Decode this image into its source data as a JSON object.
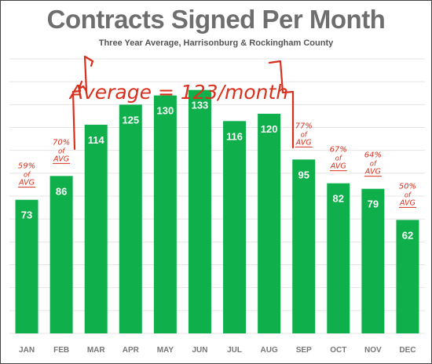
{
  "chart_data": {
    "type": "bar",
    "title": "Contracts Signed Per Month",
    "subtitle": "Three Year Average, Harrisonburg & Rockingham County",
    "categories": [
      "JAN",
      "FEB",
      "MAR",
      "APR",
      "MAY",
      "JUN",
      "JUL",
      "AUG",
      "SEP",
      "OCT",
      "NOV",
      "DEC"
    ],
    "values": [
      73,
      86,
      114,
      125,
      130,
      133,
      116,
      120,
      95,
      82,
      79,
      62
    ],
    "ylim": [
      0,
      150
    ],
    "grid": true,
    "bar_color": "#0fb04b",
    "annotation_color": "#d9301e",
    "average_annotation": "Average = 123/month",
    "pct_annotations": [
      {
        "month": "JAN",
        "pct": "59%",
        "of": "of",
        "avg": "AVG"
      },
      {
        "month": "FEB",
        "pct": "70%",
        "of": "of",
        "avg": "AVG"
      },
      {
        "month": "SEP",
        "pct": "77%",
        "of": "of",
        "avg": "AVG"
      },
      {
        "month": "OCT",
        "pct": "67%",
        "of": "of",
        "avg": "AVG"
      },
      {
        "month": "NOV",
        "pct": "64%",
        "of": "of",
        "avg": "AVG"
      },
      {
        "month": "DEC",
        "pct": "50%",
        "of": "of",
        "avg": "AVG"
      }
    ]
  }
}
